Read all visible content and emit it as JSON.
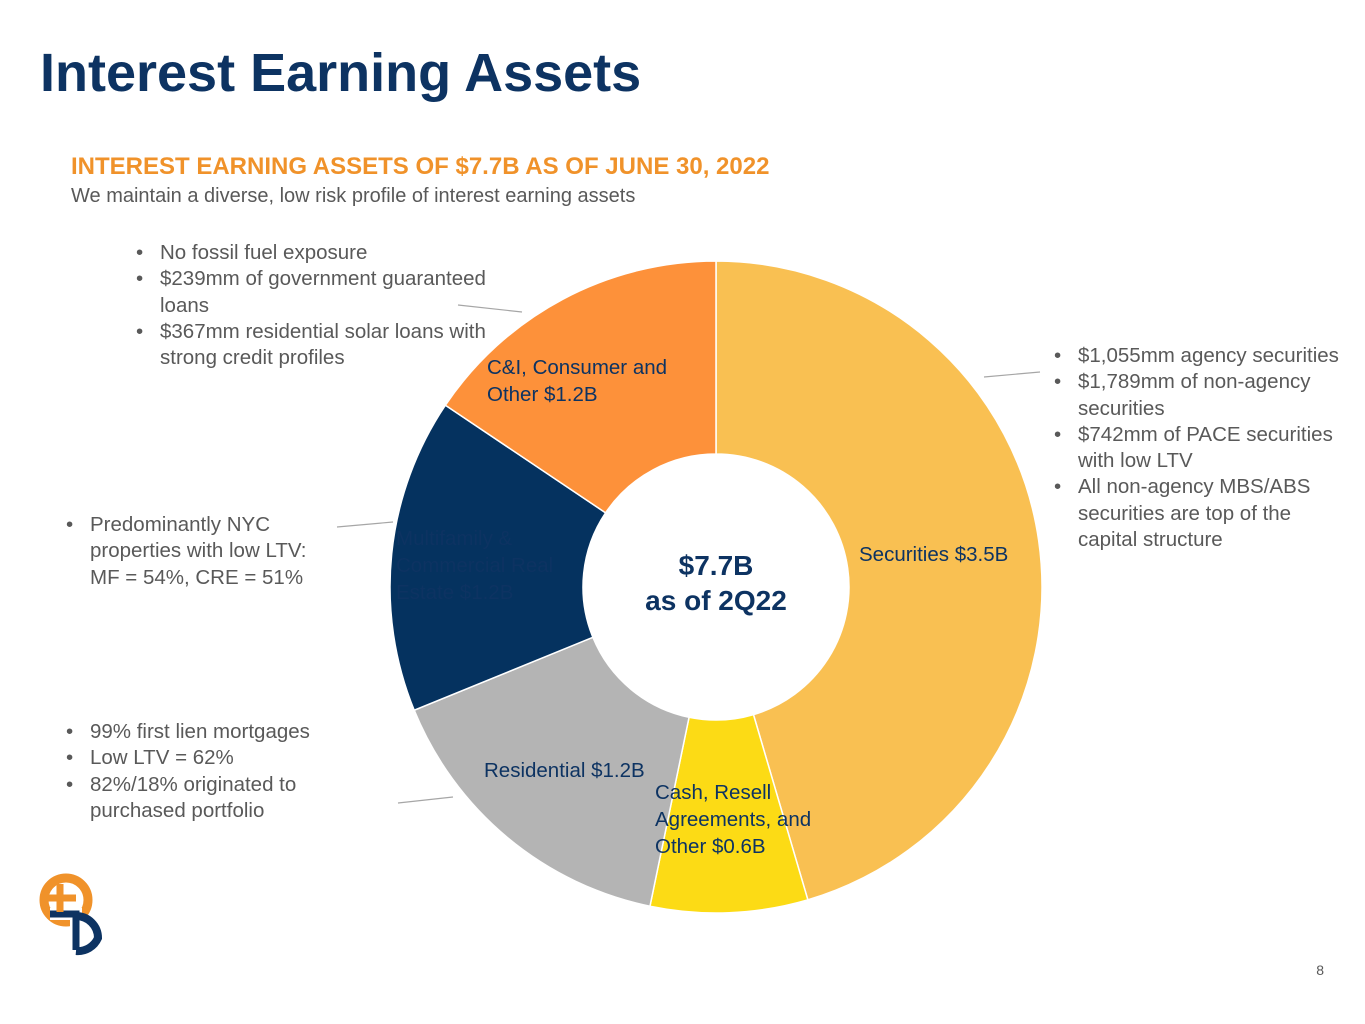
{
  "page": {
    "title": "Interest Earning Assets",
    "subtitle": "INTEREST EARNING ASSETS OF $7.7B AS OF JUNE 30, 2022",
    "subtext": "We maintain a diverse, low risk profile of interest earning assets",
    "page_number": "8"
  },
  "colors": {
    "title": "#0d3362",
    "subtitle": "#f0922a",
    "securities": "#f9c052",
    "cash": "#fcdb15",
    "residential": "#b4b4b4",
    "multifamily": "#05325f",
    "ci_consumer": "#fd913a"
  },
  "notes": {
    "ci": [
      "No fossil fuel exposure",
      "$239mm of government guaranteed loans",
      "$367mm residential solar loans with strong credit profiles"
    ],
    "securities": [
      "$1,055mm agency securities",
      "$1,789mm of non-agency securities",
      "$742mm of PACE securities with low LTV",
      "All non-agency MBS/ABS securities are top of the capital structure"
    ],
    "multifamily": [
      "Predominantly NYC properties with low LTV: MF = 54%, CRE = 51%"
    ],
    "residential": [
      "99% first lien mortgages",
      "Low LTV = 62%",
      "82%/18% originated to purchased portfolio"
    ]
  },
  "chart_data": {
    "type": "pie",
    "center_label": [
      "$7.7B",
      "as of 2Q22"
    ],
    "units": "$B",
    "slices": [
      {
        "label": "Securities $3.5B",
        "value": 3.5,
        "color_key": "securities"
      },
      {
        "label": "Cash, Resell Agreements, and Other $0.6B",
        "value": 0.6,
        "color_key": "cash"
      },
      {
        "label": "Residential $1.2B",
        "value": 1.2,
        "color_key": "residential"
      },
      {
        "label": "Multifamily & Commercial Real Estate $1.2B",
        "value": 1.2,
        "color_key": "multifamily"
      },
      {
        "label": "C&I, Consumer and Other $1.2B",
        "value": 1.2,
        "color_key": "ci_consumer"
      }
    ]
  }
}
